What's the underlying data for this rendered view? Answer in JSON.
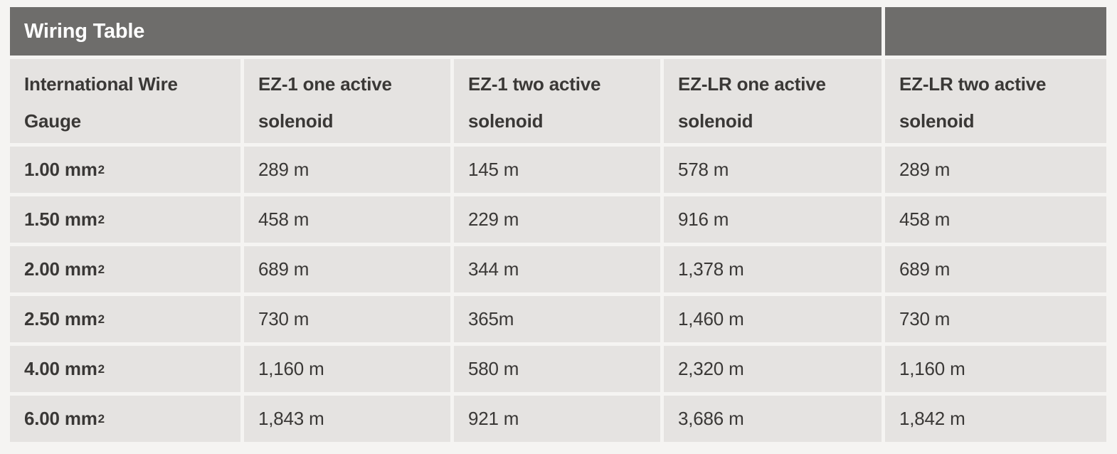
{
  "page": {
    "background": "#f5f4f2"
  },
  "table": {
    "title": "Wiring Table",
    "theme": {
      "title_bar_bg": "#6e6d6b",
      "title_bar_text": "#ffffff",
      "cell_bg": "#e5e3e1",
      "cell_text": "#3a3836",
      "gap_color": "#f5f4f2"
    },
    "columns": [
      "International Wire Gauge",
      "EZ-1 one active solenoid",
      "EZ-1 two active solenoid",
      "EZ-LR one active solenoid",
      "EZ-LR two active solenoid"
    ],
    "rows": [
      {
        "gauge_base": "1.00 mm",
        "gauge_sup": "2",
        "values": [
          "289 m",
          "145 m",
          "578 m",
          "289 m"
        ]
      },
      {
        "gauge_base": "1.50 mm",
        "gauge_sup": "2",
        "values": [
          "458 m",
          "229 m",
          "916 m",
          "458 m"
        ]
      },
      {
        "gauge_base": "2.00 mm",
        "gauge_sup": "2",
        "values": [
          "689 m",
          "344 m",
          "1,378 m",
          "689 m"
        ]
      },
      {
        "gauge_base": "2.50 mm",
        "gauge_sup": "2",
        "values": [
          "730 m",
          "365m",
          "1,460 m",
          "730 m"
        ]
      },
      {
        "gauge_base": "4.00 mm",
        "gauge_sup": "2",
        "values": [
          "1,160 m",
          "580 m",
          "2,320 m",
          "1,160 m"
        ]
      },
      {
        "gauge_base": "6.00 mm",
        "gauge_sup": "2",
        "values": [
          "1,843 m",
          "921 m",
          "3,686 m",
          "1,842 m"
        ]
      }
    ]
  }
}
